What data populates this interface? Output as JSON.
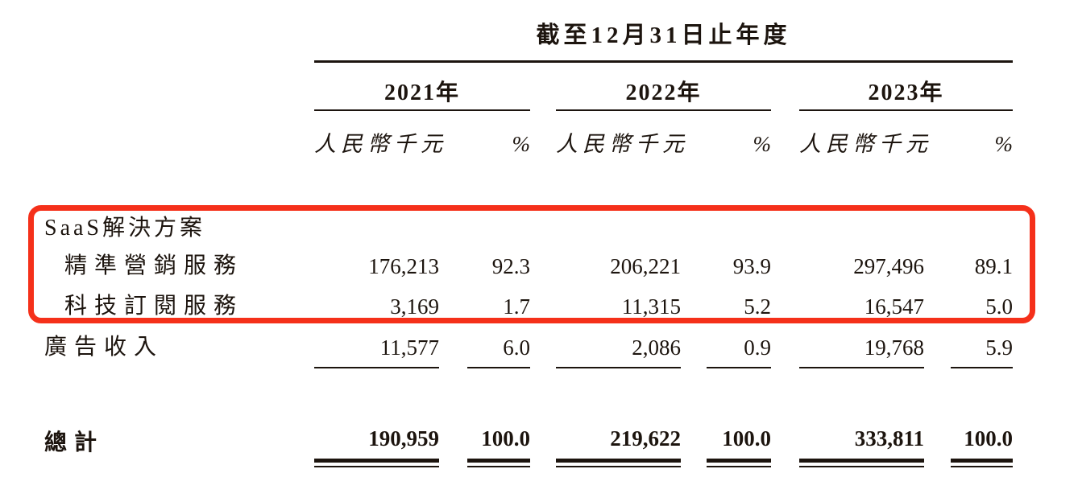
{
  "document": {
    "title": "截至12月31日止年度",
    "years": [
      {
        "label": "2021年",
        "unit_header": "人民幣千元",
        "pct_header": "%"
      },
      {
        "label": "2022年",
        "unit_header": "人民幣千元",
        "pct_header": "%"
      },
      {
        "label": "2023年",
        "unit_header": "人民幣千元",
        "pct_header": "%"
      }
    ],
    "rows": {
      "saas_section": {
        "label": "SaaS解決方案"
      },
      "precision_marketing": {
        "label": "精準營銷服務",
        "v": [
          "176,213",
          "92.3",
          "206,221",
          "93.9",
          "297,496",
          "89.1"
        ]
      },
      "tech_subscription": {
        "label": "科技訂閱服務",
        "v": [
          "3,169",
          "1.7",
          "11,315",
          "5.2",
          "16,547",
          "5.0"
        ]
      },
      "advertising": {
        "label": "廣告收入",
        "v": [
          "11,577",
          "6.0",
          "2,086",
          "0.9",
          "19,768",
          "5.9"
        ]
      },
      "total": {
        "label": "總計",
        "v": [
          "190,959",
          "100.0",
          "219,622",
          "100.0",
          "333,811",
          "100.0"
        ]
      }
    },
    "annotation": {
      "highlight_color": "#f5301a",
      "highlighted_rows": "SaaS解決方案, 精準營銷服務, 科技訂閱服務"
    }
  },
  "chart_data": {
    "type": "table",
    "title": "截至12月31日止年度",
    "column_groups": [
      "2021年",
      "2022年",
      "2023年"
    ],
    "columns": [
      "人民幣千元",
      "%",
      "人民幣千元",
      "%",
      "人民幣千元",
      "%"
    ],
    "rows": [
      {
        "label": "SaaS解決方案",
        "values": []
      },
      {
        "label": "精準營銷服務",
        "values": [
          176213,
          92.3,
          206221,
          93.9,
          297496,
          89.1
        ]
      },
      {
        "label": "科技訂閱服務",
        "values": [
          3169,
          1.7,
          11315,
          5.2,
          16547,
          5.0
        ]
      },
      {
        "label": "廣告收入",
        "values": [
          11577,
          6.0,
          2086,
          0.9,
          19768,
          5.9
        ]
      },
      {
        "label": "總計",
        "values": [
          190959,
          100.0,
          219622,
          100.0,
          333811,
          100.0
        ]
      }
    ]
  }
}
